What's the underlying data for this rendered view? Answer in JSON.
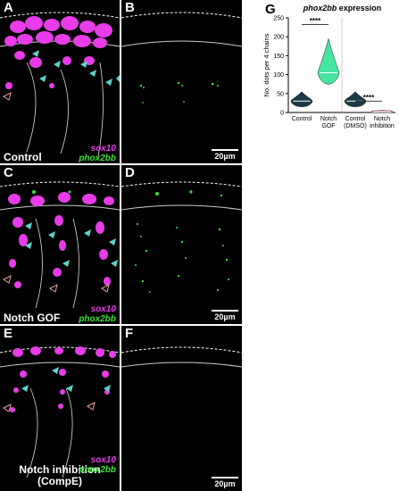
{
  "panels": {
    "A": {
      "letter": "A",
      "condition": "Control",
      "legend": [
        "sox10",
        "phox2bb"
      ]
    },
    "B": {
      "letter": "B",
      "scale": "20µm"
    },
    "C": {
      "letter": "C",
      "condition": "Notch GOF",
      "legend": [
        "sox10",
        "phox2bb"
      ]
    },
    "D": {
      "letter": "D",
      "scale": "20µm"
    },
    "E": {
      "letter": "E",
      "condition_line1": "Notch inhibition",
      "condition_line2": "(CompE)",
      "legend": [
        "sox10",
        "phox2bb"
      ]
    },
    "F": {
      "letter": "F",
      "scale": "20µm"
    }
  },
  "colors": {
    "sox10": "#e83ce8",
    "phox2bb": "#3be03b",
    "arrowhead_cyan": "#5fd3c8",
    "arrowhead_outline": "#e8a0a0",
    "violin_control": "#1a3a45",
    "violin_gof": "#46e6a0",
    "violin_inhibition": "#e090a0"
  },
  "chart_data": {
    "type": "violin",
    "panel_letter": "G",
    "title_italic": "phox2bb",
    "title_rest": " expression",
    "ylabel": "No. dots per 4 chains",
    "ylim": [
      0,
      250
    ],
    "yticks": [
      0,
      50,
      100,
      150,
      200,
      250
    ],
    "groups": [
      {
        "label_line1": "Control",
        "label_line2": "",
        "median": 30,
        "min": 15,
        "max": 55,
        "color": "#1a3a45"
      },
      {
        "label_line1": "Notch",
        "label_line2": "GOF",
        "median": 105,
        "min": 75,
        "max": 195,
        "color": "#46e6a0"
      },
      {
        "label_line1": "Control",
        "label_line2": "(DMSO)",
        "median": 30,
        "min": 15,
        "max": 55,
        "color": "#1a3a45"
      },
      {
        "label_line1": "Notch",
        "label_line2": "inhibition",
        "median": 2,
        "min": 0,
        "max": 6,
        "color": "#e090a0"
      }
    ],
    "comparisons": [
      {
        "from": 0,
        "to": 1,
        "label": "****",
        "y": 232
      },
      {
        "from": 2,
        "to": 3,
        "label": "****",
        "y": 30
      }
    ]
  }
}
